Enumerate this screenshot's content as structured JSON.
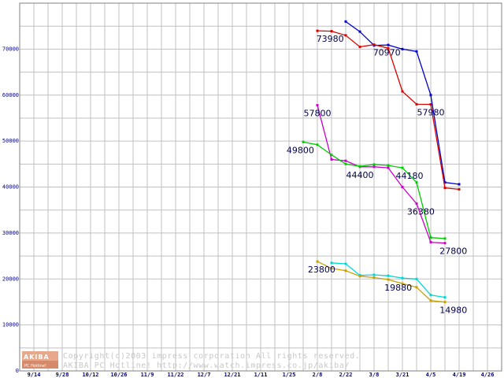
{
  "chart_data": {
    "type": "line",
    "title": "",
    "xlabel": "",
    "ylabel": "",
    "ylim": [
      0,
      80000
    ],
    "y_ticks": [
      0,
      10000,
      20000,
      30000,
      40000,
      50000,
      60000,
      70000
    ],
    "grid": true,
    "x_tick_labels": [
      "9/14",
      "9/28",
      "10/12",
      "10/26",
      "11/9",
      "11/22",
      "12/7",
      "12/21",
      "1/11",
      "1/25",
      "2/8",
      "2/22",
      "3/8",
      "3/21",
      "4/5",
      "4/19",
      "4/26"
    ],
    "series": [
      {
        "name": "blue",
        "color": "#0000cc",
        "points": [
          [
            23.0,
            76000
          ],
          [
            24.0,
            73800
          ],
          [
            25.0,
            70800
          ],
          [
            26.0,
            70900
          ],
          [
            27.0,
            70000
          ],
          [
            28.0,
            69500
          ],
          [
            29.0,
            60000
          ],
          [
            30.0,
            41000
          ],
          [
            31.0,
            40600
          ]
        ]
      },
      {
        "name": "red",
        "color": "#dd0000",
        "points": [
          [
            21.0,
            73980
          ],
          [
            22.0,
            73900
          ],
          [
            23.0,
            73000
          ],
          [
            24.0,
            70500
          ],
          [
            25.0,
            70970
          ],
          [
            26.0,
            70200
          ],
          [
            27.0,
            60800
          ],
          [
            28.0,
            58000
          ],
          [
            29.0,
            57980
          ],
          [
            30.0,
            39800
          ],
          [
            31.0,
            39500
          ]
        ]
      },
      {
        "name": "magenta",
        "color": "#cc00cc",
        "points": [
          [
            21.0,
            57800
          ],
          [
            22.0,
            46000
          ],
          [
            23.0,
            45700
          ],
          [
            24.0,
            44400
          ],
          [
            25.0,
            44400
          ],
          [
            26.0,
            44180
          ],
          [
            27.0,
            40000
          ],
          [
            28.0,
            36380
          ],
          [
            29.0,
            28000
          ],
          [
            30.0,
            27800
          ]
        ]
      },
      {
        "name": "green",
        "color": "#00cc00",
        "points": [
          [
            20.0,
            49800
          ],
          [
            21.0,
            49200
          ],
          [
            22.0,
            47000
          ],
          [
            23.0,
            45000
          ],
          [
            24.0,
            44500
          ],
          [
            25.0,
            44900
          ],
          [
            26.0,
            44700
          ],
          [
            27.0,
            44180
          ],
          [
            28.0,
            41000
          ],
          [
            29.0,
            29000
          ],
          [
            30.0,
            28800
          ]
        ]
      },
      {
        "name": "cyan",
        "color": "#00d8d8",
        "points": [
          [
            22.0,
            23500
          ],
          [
            23.0,
            23300
          ],
          [
            24.0,
            20800
          ],
          [
            25.0,
            20900
          ],
          [
            26.0,
            20700
          ],
          [
            27.0,
            20200
          ],
          [
            28.0,
            20000
          ],
          [
            29.0,
            16500
          ],
          [
            30.0,
            16000
          ]
        ]
      },
      {
        "name": "olive",
        "color": "#c8a000",
        "points": [
          [
            21.0,
            23800
          ],
          [
            22.0,
            22300
          ],
          [
            23.0,
            21800
          ],
          [
            24.0,
            20600
          ],
          [
            25.0,
            20300
          ],
          [
            26.0,
            19880
          ],
          [
            27.0,
            19000
          ],
          [
            28.0,
            18200
          ],
          [
            29.0,
            15300
          ],
          [
            30.0,
            14980
          ]
        ]
      }
    ],
    "annotations": [
      {
        "text": "73980",
        "x": 21.9,
        "y": 73980
      },
      {
        "text": "70970",
        "x": 25.9,
        "y": 70970
      },
      {
        "text": "57980",
        "x": 29.0,
        "y": 57980
      },
      {
        "text": "57800",
        "x": 21.0,
        "y": 57800
      },
      {
        "text": "49800",
        "x": 19.8,
        "y": 49800
      },
      {
        "text": "44400",
        "x": 24.0,
        "y": 44400
      },
      {
        "text": "44180",
        "x": 27.5,
        "y": 44180
      },
      {
        "text": "36380",
        "x": 28.3,
        "y": 36380
      },
      {
        "text": "27800",
        "x": 30.6,
        "y": 27800
      },
      {
        "text": "23800",
        "x": 21.3,
        "y": 23800
      },
      {
        "text": "19880",
        "x": 26.7,
        "y": 19880
      },
      {
        "text": "14980",
        "x": 30.6,
        "y": 14980
      }
    ]
  },
  "watermark": {
    "logo_top": "AKIBA",
    "logo_bottom": "PC Hotline!",
    "line1": "Copyright(c)2003 impress corporation All rights reserved.",
    "line2": "AKIBA PC Hotline! http://www.watch.impress.co.jp/akiba/"
  },
  "colors": {
    "grid": "#c0c0c0",
    "axis": "#000000",
    "label": "#000050",
    "logo_bg": "#e6a98c"
  }
}
